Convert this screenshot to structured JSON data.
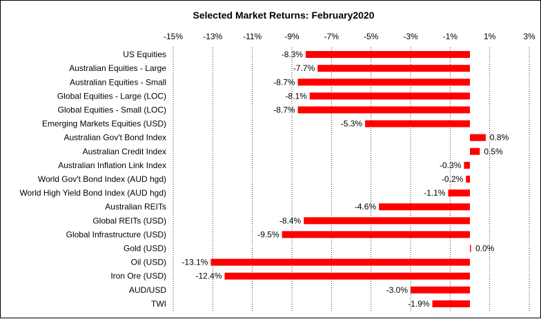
{
  "chart_data": {
    "type": "bar",
    "orientation": "horizontal",
    "title": "Selected Market Returns: February2020",
    "xlabel": "",
    "ylabel": "",
    "xlim": [
      -15,
      3
    ],
    "x_ticks": [
      "-15%",
      "-13%",
      "-11%",
      "-9%",
      "-7%",
      "-5%",
      "-3%",
      "-1%",
      "1%",
      "3%"
    ],
    "x_tick_values": [
      -15,
      -13,
      -11,
      -9,
      -7,
      -5,
      -3,
      -1,
      1,
      3
    ],
    "grid": "vertical dotted",
    "legend": "none",
    "bar_color": "#ff0000",
    "categories": [
      "US Equities",
      "Australian Equities - Large",
      "Australian Equities - Small",
      "Global Equities - Large (LOC)",
      "Global Equities - Small (LOC)",
      "Emerging Markets Equities (USD)",
      "Australian Gov't Bond Index",
      "Australian Credit Index",
      "Australian Inflation Link Index",
      "World Gov't Bond Index (AUD hgd)",
      "World High Yield Bond Index (AUD hgd)",
      "Australian REITs",
      "Global REITs (USD)",
      "Global Infrastructure (USD)",
      "Gold (USD)",
      "Oil (USD)",
      "Iron Ore (USD)",
      "AUD/USD",
      "TWI"
    ],
    "values": [
      -8.3,
      -7.7,
      -8.7,
      -8.1,
      -8.7,
      -5.3,
      0.8,
      0.5,
      -0.3,
      -0.2,
      -1.1,
      -4.6,
      -8.4,
      -9.5,
      0.0,
      -13.1,
      -12.4,
      -3.0,
      -1.9
    ],
    "data_labels": [
      "-8.3%",
      "-7.7%",
      "-8.7%",
      "-8.1%",
      "-8.7%",
      "-5.3%",
      "0.8%",
      "0.5%",
      "-0.3%",
      "-0.2%",
      "-1.1%",
      "-4.6%",
      "-8.4%",
      "-9.5%",
      "0.0%",
      "-13.1%",
      "-12.4%",
      "-3.0%",
      "-1.9%"
    ]
  }
}
